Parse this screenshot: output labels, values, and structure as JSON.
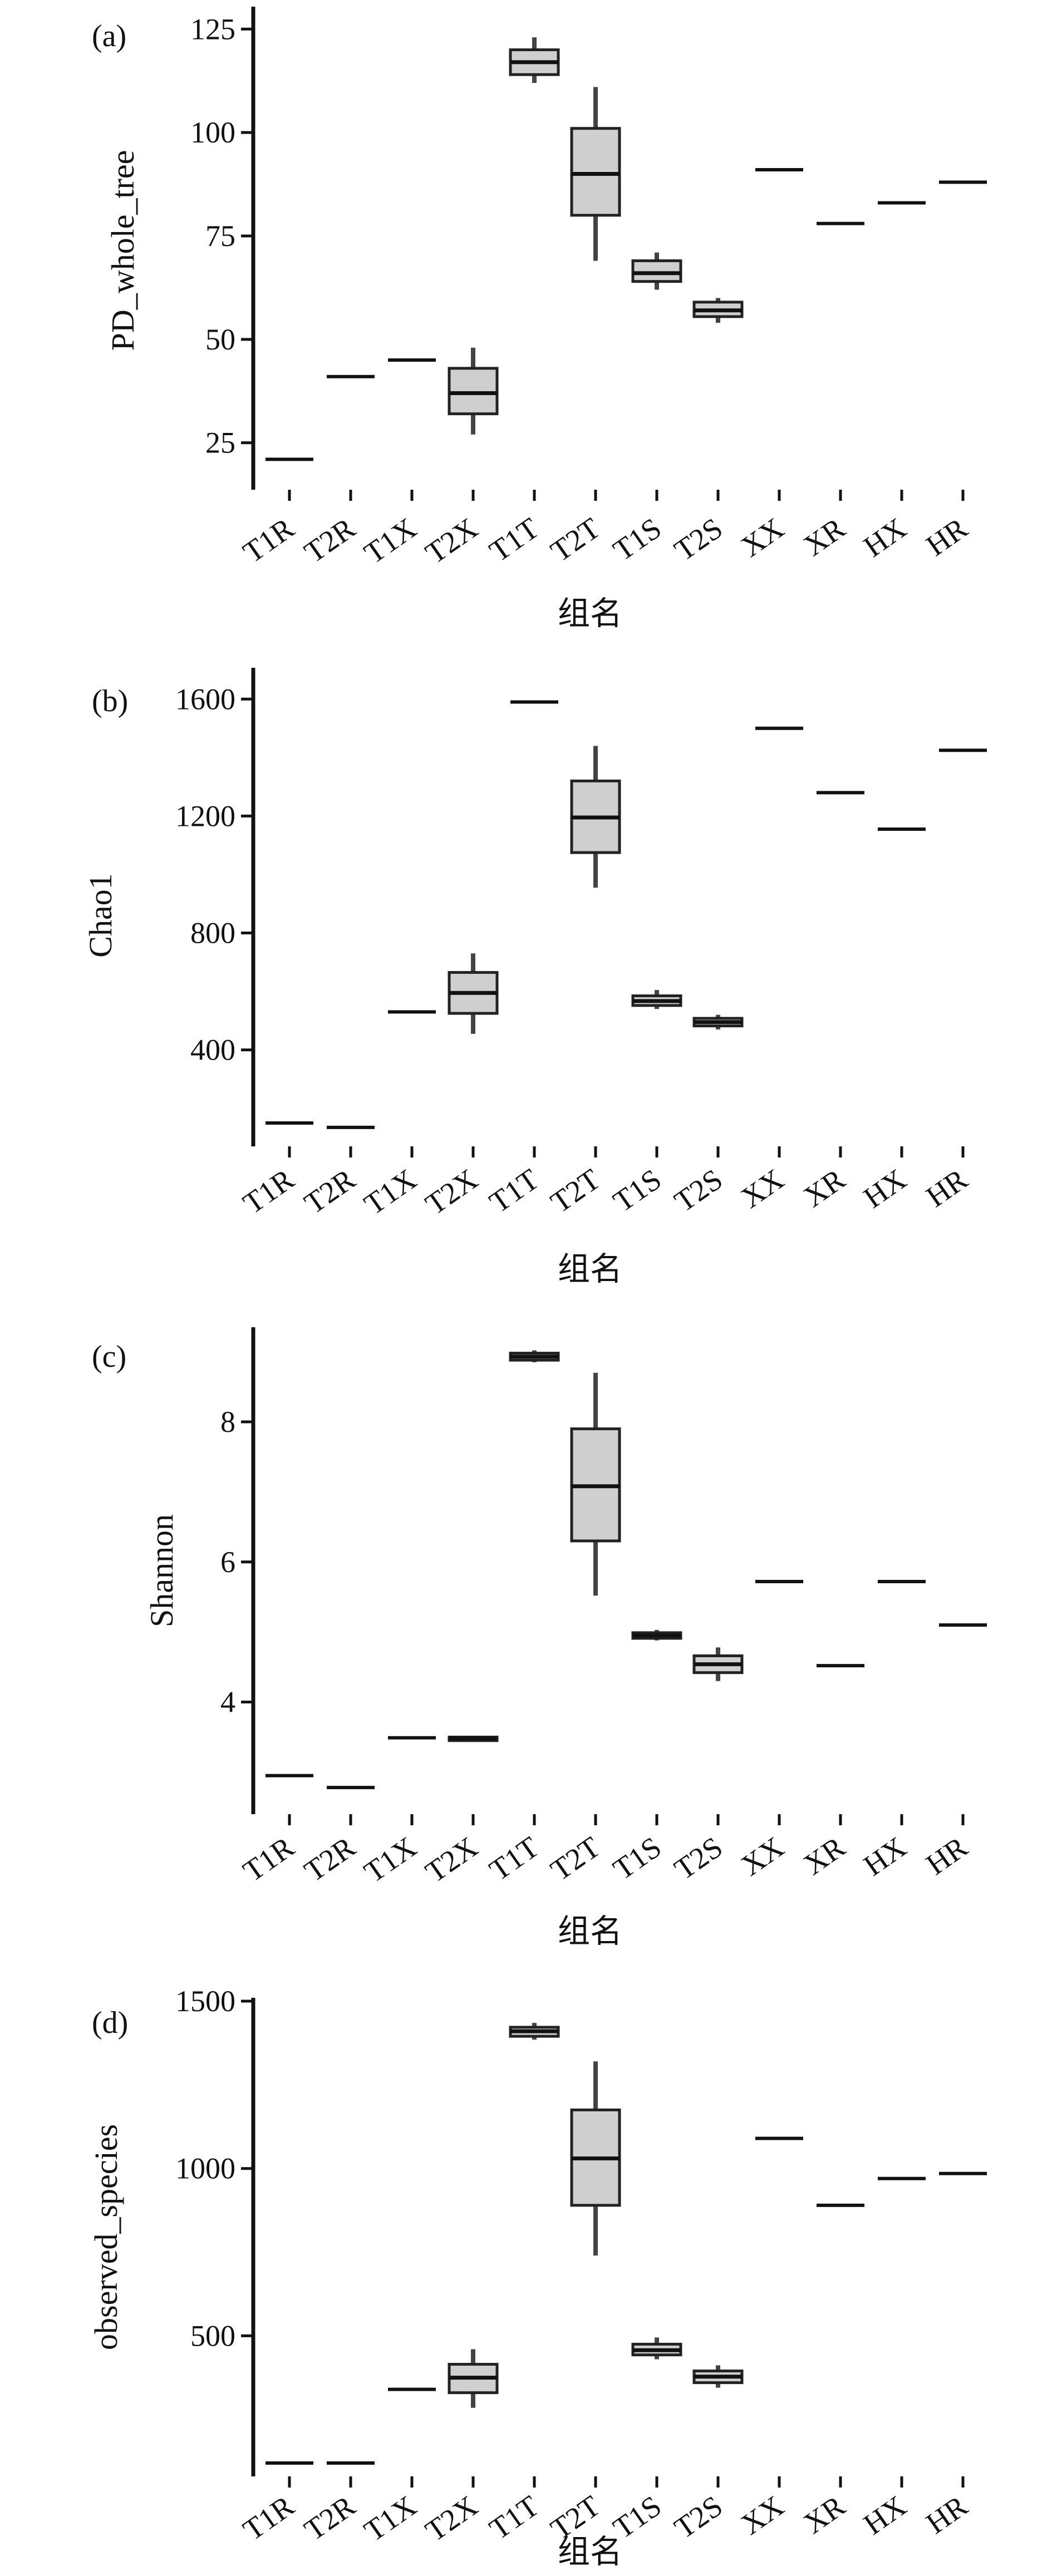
{
  "chart_data": [
    {
      "type": "box",
      "panel_label": "(a)",
      "ylabel": "PD_whole_tree",
      "xlabel": "组名",
      "categories": [
        "T1R",
        "T2R",
        "T1X",
        "T2X",
        "T1T",
        "T2T",
        "T1S",
        "T2S",
        "XX",
        "XR",
        "HX",
        "HR"
      ],
      "yticks": [
        25,
        50,
        75,
        100,
        125
      ],
      "ylim": [
        15,
        128
      ],
      "boxes": [
        {
          "group": "T1R",
          "min": 21,
          "q1": 21,
          "median": 21,
          "q3": 21,
          "max": 21
        },
        {
          "group": "T2R",
          "min": 41,
          "q1": 41,
          "median": 41,
          "q3": 41,
          "max": 41
        },
        {
          "group": "T1X",
          "min": 45,
          "q1": 45,
          "median": 45,
          "q3": 45,
          "max": 45
        },
        {
          "group": "T2X",
          "min": 27,
          "q1": 32,
          "median": 37,
          "q3": 43,
          "max": 48
        },
        {
          "group": "T1T",
          "min": 112,
          "q1": 114,
          "median": 117,
          "q3": 120,
          "max": 123
        },
        {
          "group": "T2T",
          "min": 69,
          "q1": 80,
          "median": 90,
          "q3": 101,
          "max": 111
        },
        {
          "group": "T1S",
          "min": 62,
          "q1": 64,
          "median": 66,
          "q3": 69,
          "max": 71
        },
        {
          "group": "T2S",
          "min": 54,
          "q1": 55.5,
          "median": 57,
          "q3": 59,
          "max": 60
        },
        {
          "group": "XX",
          "min": 91,
          "q1": 91,
          "median": 91,
          "q3": 91,
          "max": 91
        },
        {
          "group": "XR",
          "min": 78,
          "q1": 78,
          "median": 78,
          "q3": 78,
          "max": 78
        },
        {
          "group": "HX",
          "min": 83,
          "q1": 83,
          "median": 83,
          "q3": 83,
          "max": 83
        },
        {
          "group": "HR",
          "min": 88,
          "q1": 88,
          "median": 88,
          "q3": 88,
          "max": 88
        }
      ]
    },
    {
      "type": "box",
      "panel_label": "(b)",
      "ylabel": "Chao1",
      "xlabel": "组名",
      "categories": [
        "T1R",
        "T2R",
        "T1X",
        "T2X",
        "T1T",
        "T2T",
        "T1S",
        "T2S",
        "XX",
        "XR",
        "HX",
        "HR"
      ],
      "yticks": [
        400,
        800,
        1200,
        1600
      ],
      "ylim": [
        70,
        1650
      ],
      "boxes": [
        {
          "group": "T1R",
          "min": 150,
          "q1": 150,
          "median": 150,
          "q3": 150,
          "max": 150
        },
        {
          "group": "T2R",
          "min": 135,
          "q1": 135,
          "median": 135,
          "q3": 135,
          "max": 135
        },
        {
          "group": "T1X",
          "min": 530,
          "q1": 530,
          "median": 530,
          "q3": 530,
          "max": 530
        },
        {
          "group": "T2X",
          "min": 455,
          "q1": 525,
          "median": 595,
          "q3": 665,
          "max": 730
        },
        {
          "group": "T1T",
          "min": 1590,
          "q1": 1590,
          "median": 1590,
          "q3": 1590,
          "max": 1590
        },
        {
          "group": "T2T",
          "min": 955,
          "q1": 1075,
          "median": 1195,
          "q3": 1320,
          "max": 1440
        },
        {
          "group": "T1S",
          "min": 540,
          "q1": 552,
          "median": 567,
          "q3": 585,
          "max": 605
        },
        {
          "group": "T2S",
          "min": 470,
          "q1": 482,
          "median": 495,
          "q3": 508,
          "max": 520
        },
        {
          "group": "XX",
          "min": 1500,
          "q1": 1500,
          "median": 1500,
          "q3": 1500,
          "max": 1500
        },
        {
          "group": "XR",
          "min": 1280,
          "q1": 1280,
          "median": 1280,
          "q3": 1280,
          "max": 1280
        },
        {
          "group": "HX",
          "min": 1155,
          "q1": 1155,
          "median": 1155,
          "q3": 1155,
          "max": 1155
        },
        {
          "group": "HR",
          "min": 1425,
          "q1": 1425,
          "median": 1425,
          "q3": 1425,
          "max": 1425
        }
      ]
    },
    {
      "type": "box",
      "panel_label": "(c)",
      "ylabel": "Shannon",
      "xlabel": "组名",
      "categories": [
        "T1R",
        "T2R",
        "T1X",
        "T2X",
        "T1T",
        "T2T",
        "T1S",
        "T2S",
        "XX",
        "XR",
        "HX",
        "HR"
      ],
      "yticks": [
        4,
        6,
        8
      ],
      "ylim": [
        2.4,
        9.35
      ],
      "boxes": [
        {
          "group": "T1R",
          "min": 2.95,
          "q1": 2.95,
          "median": 2.95,
          "q3": 2.95,
          "max": 2.95
        },
        {
          "group": "T2R",
          "min": 2.78,
          "q1": 2.78,
          "median": 2.78,
          "q3": 2.78,
          "max": 2.78
        },
        {
          "group": "T1X",
          "min": 3.49,
          "q1": 3.49,
          "median": 3.49,
          "q3": 3.49,
          "max": 3.49
        },
        {
          "group": "T2X",
          "min": 3.43,
          "q1": 3.45,
          "median": 3.48,
          "q3": 3.5,
          "max": 3.52
        },
        {
          "group": "T1T",
          "min": 8.85,
          "q1": 8.88,
          "median": 8.93,
          "q3": 8.98,
          "max": 9.02
        },
        {
          "group": "T2T",
          "min": 5.52,
          "q1": 6.3,
          "median": 7.08,
          "q3": 7.9,
          "max": 8.7
        },
        {
          "group": "T1S",
          "min": 4.88,
          "q1": 4.91,
          "median": 4.95,
          "q3": 4.99,
          "max": 5.03
        },
        {
          "group": "T2S",
          "min": 4.3,
          "q1": 4.42,
          "median": 4.54,
          "q3": 4.66,
          "max": 4.78
        },
        {
          "group": "XX",
          "min": 5.72,
          "q1": 5.72,
          "median": 5.72,
          "q3": 5.72,
          "max": 5.72
        },
        {
          "group": "XR",
          "min": 4.52,
          "q1": 4.52,
          "median": 4.52,
          "q3": 4.52,
          "max": 4.52
        },
        {
          "group": "HX",
          "min": 5.72,
          "q1": 5.72,
          "median": 5.72,
          "q3": 5.72,
          "max": 5.72
        },
        {
          "group": "HR",
          "min": 5.1,
          "q1": 5.1,
          "median": 5.1,
          "q3": 5.1,
          "max": 5.1
        }
      ]
    },
    {
      "type": "box",
      "panel_label": "(d)",
      "ylabel": "observed_species",
      "xlabel": "组名",
      "categories": [
        "T1R",
        "T2R",
        "T1X",
        "T2X",
        "T1T",
        "T2T",
        "T1S",
        "T2S",
        "XX",
        "XR",
        "HX",
        "HR"
      ],
      "yticks": [
        500,
        1000,
        1500
      ],
      "ylim": [
        80,
        1510
      ],
      "boxes": [
        {
          "group": "T1R",
          "min": 120,
          "q1": 120,
          "median": 120,
          "q3": 120,
          "max": 120
        },
        {
          "group": "T2R",
          "min": 120,
          "q1": 120,
          "median": 120,
          "q3": 120,
          "max": 120
        },
        {
          "group": "T1X",
          "min": 340,
          "q1": 340,
          "median": 340,
          "q3": 340,
          "max": 340
        },
        {
          "group": "T2X",
          "min": 285,
          "q1": 330,
          "median": 375,
          "q3": 415,
          "max": 460
        },
        {
          "group": "T1T",
          "min": 1385,
          "q1": 1395,
          "median": 1410,
          "q3": 1422,
          "max": 1435
        },
        {
          "group": "T2T",
          "min": 740,
          "q1": 890,
          "median": 1030,
          "q3": 1175,
          "max": 1320
        },
        {
          "group": "T1S",
          "min": 430,
          "q1": 443,
          "median": 457,
          "q3": 475,
          "max": 495
        },
        {
          "group": "T2S",
          "min": 345,
          "q1": 360,
          "median": 378,
          "q3": 395,
          "max": 412
        },
        {
          "group": "XX",
          "min": 1090,
          "q1": 1090,
          "median": 1090,
          "q3": 1090,
          "max": 1090
        },
        {
          "group": "XR",
          "min": 890,
          "q1": 890,
          "median": 890,
          "q3": 890,
          "max": 890
        },
        {
          "group": "HX",
          "min": 970,
          "q1": 970,
          "median": 970,
          "q3": 970,
          "max": 970
        },
        {
          "group": "HR",
          "min": 985,
          "q1": 985,
          "median": 985,
          "q3": 985,
          "max": 985
        }
      ]
    }
  ]
}
